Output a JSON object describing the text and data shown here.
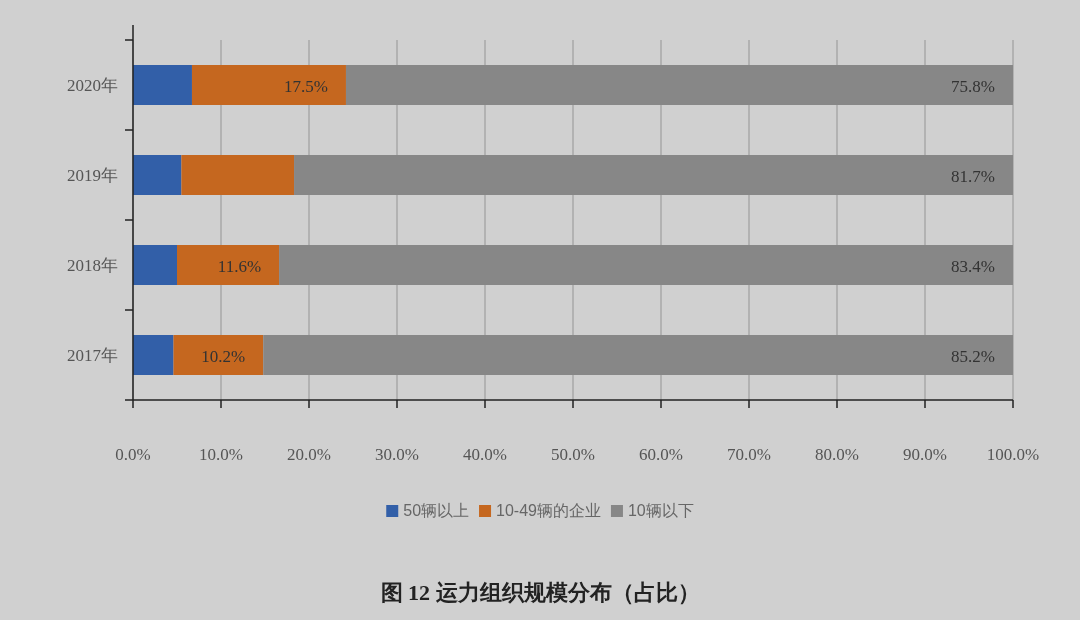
{
  "chart_data": {
    "type": "bar",
    "orientation": "horizontal",
    "stacked": true,
    "title": "图 12 运力组织规模分布（占比）",
    "categories": [
      "2020年",
      "2019年",
      "2018年",
      "2017年"
    ],
    "series": [
      {
        "name": "50辆以上",
        "color": "#325fa8",
        "values": [
          6.7,
          5.5,
          5.0,
          4.6
        ],
        "value_labels": [
          null,
          null,
          null,
          null
        ]
      },
      {
        "name": "10-49辆的企业",
        "color": "#c5671f",
        "values": [
          17.5,
          12.8,
          11.6,
          10.2
        ],
        "value_labels": [
          "17.5%",
          null,
          "11.6%",
          "10.2%"
        ]
      },
      {
        "name": "10辆以下",
        "color": "#878787",
        "values": [
          75.8,
          81.7,
          83.4,
          85.2
        ],
        "value_labels": [
          "75.8%",
          "81.7%",
          "83.4%",
          "85.2%"
        ]
      }
    ],
    "xlim": [
      0,
      100
    ],
    "xticks": [
      {
        "value": 0,
        "label": "0.0%"
      },
      {
        "value": 10,
        "label": "10.0%"
      },
      {
        "value": 20,
        "label": "20.0%"
      },
      {
        "value": 30,
        "label": "30.0%"
      },
      {
        "value": 40,
        "label": "40.0%"
      },
      {
        "value": 50,
        "label": "50.0%"
      },
      {
        "value": 60,
        "label": "60.0%"
      },
      {
        "value": 70,
        "label": "70.0%"
      },
      {
        "value": 80,
        "label": "80.0%"
      },
      {
        "value": 90,
        "label": "90.0%"
      },
      {
        "value": 100,
        "label": "100.0%"
      }
    ],
    "grid": "x",
    "legend": "bottom"
  }
}
